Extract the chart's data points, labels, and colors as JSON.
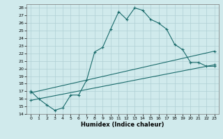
{
  "xlabel": "Humidex (Indice chaleur)",
  "background_color": "#d0eaec",
  "grid_color": "#b0d0d4",
  "line_color": "#1a6b6b",
  "xlim": [
    -0.5,
    23.5
  ],
  "ylim": [
    14,
    28.5
  ],
  "yticks": [
    14,
    15,
    16,
    17,
    18,
    19,
    20,
    21,
    22,
    23,
    24,
    25,
    26,
    27,
    28
  ],
  "xticks": [
    0,
    1,
    2,
    3,
    4,
    5,
    6,
    7,
    8,
    9,
    10,
    11,
    12,
    13,
    14,
    15,
    16,
    17,
    18,
    19,
    20,
    21,
    22,
    23
  ],
  "series1_x": [
    0,
    1,
    2,
    3,
    4,
    5,
    6,
    7,
    8,
    9,
    10,
    11,
    12,
    13,
    14,
    15,
    16,
    17,
    18,
    19,
    20,
    21,
    22,
    23
  ],
  "series1_y": [
    17.0,
    16.0,
    15.2,
    14.5,
    14.8,
    16.5,
    16.5,
    18.5,
    22.2,
    22.8,
    25.2,
    27.5,
    26.5,
    28.0,
    27.7,
    26.5,
    26.0,
    25.2,
    23.2,
    22.5,
    20.8,
    20.8,
    20.3,
    20.3
  ],
  "series2_x": [
    0,
    23
  ],
  "series2_y": [
    16.8,
    22.3
  ],
  "series3_x": [
    0,
    23
  ],
  "series3_y": [
    15.8,
    20.5
  ]
}
